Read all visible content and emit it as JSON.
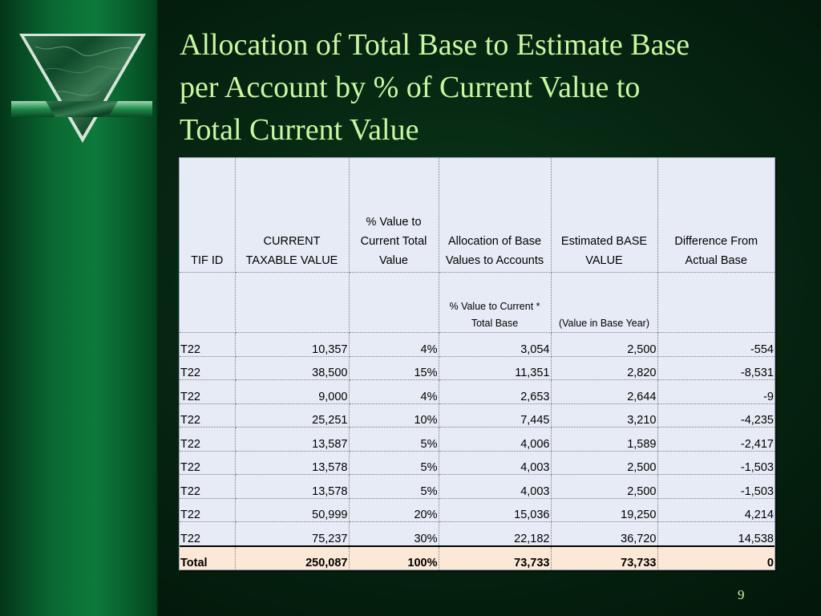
{
  "slide": {
    "title": "Allocation of Total Base to Estimate Base\nper Account by % of Current Value to\nTotal Current  Value",
    "page_number": "9"
  },
  "logo": {
    "icon": "green-marble-triangle-logo-icon",
    "colors": {
      "marble": "#0e5a2e",
      "frame": "#d8e8dc",
      "band": "#0a7a3a"
    }
  },
  "theme": {
    "title_color": "#c8f7a0",
    "table_bg": "#e6ebf5",
    "total_row_bg": "#fce8d6"
  },
  "table": {
    "headers": [
      "TIF ID",
      "CURRENT TAXABLE VALUE",
      "% Value to Current Total Value",
      "Allocation of Base Values to Accounts",
      "Estimated BASE VALUE",
      "Difference From Actual Base"
    ],
    "subheaders": [
      "",
      "",
      "",
      "% Value to Current * Total Base",
      "(Value in Base Year)",
      ""
    ],
    "rows": [
      [
        "T22",
        "10,357",
        "4%",
        "3,054",
        "2,500",
        "-554"
      ],
      [
        "T22",
        "38,500",
        "15%",
        "11,351",
        "2,820",
        "-8,531"
      ],
      [
        "T22",
        "9,000",
        "4%",
        "2,653",
        "2,644",
        "-9"
      ],
      [
        "T22",
        "25,251",
        "10%",
        "7,445",
        "3,210",
        "-4,235"
      ],
      [
        "T22",
        "13,587",
        "5%",
        "4,006",
        "1,589",
        "-2,417"
      ],
      [
        "T22",
        "13,578",
        "5%",
        "4,003",
        "2,500",
        "-1,503"
      ],
      [
        "T22",
        "13,578",
        "5%",
        "4,003",
        "2,500",
        "-1,503"
      ],
      [
        "T22",
        "50,999",
        "20%",
        "15,036",
        "19,250",
        "4,214"
      ],
      [
        "T22",
        "75,237",
        "30%",
        "22,182",
        "36,720",
        "14,538"
      ]
    ],
    "total": [
      "Total",
      "250,087",
      "100%",
      "73,733",
      "73,733",
      "0"
    ]
  }
}
